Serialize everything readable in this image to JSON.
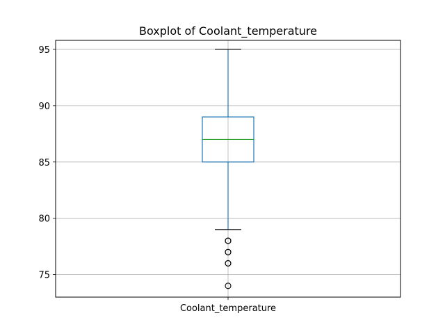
{
  "chart_data": {
    "type": "box",
    "title": "Boxplot of Coolant_temperature",
    "xlabel": "",
    "ylabel": "",
    "categories": [
      "Coolant_temperature"
    ],
    "ylim": [
      73,
      95.8
    ],
    "yticks": [
      75,
      80,
      85,
      90,
      95
    ],
    "grid": true,
    "boxes": [
      {
        "category": "Coolant_temperature",
        "whisker_low": 79,
        "q1": 85,
        "median": 87,
        "q3": 89,
        "whisker_high": 95,
        "outliers": [
          74,
          76,
          76,
          77,
          77,
          78,
          78
        ]
      }
    ],
    "colors": {
      "box": "#1f77b4",
      "median": "#2ca02c",
      "whisker_cap": "#000000",
      "outlier": "#000000",
      "grid": "#b0b0b0"
    }
  }
}
